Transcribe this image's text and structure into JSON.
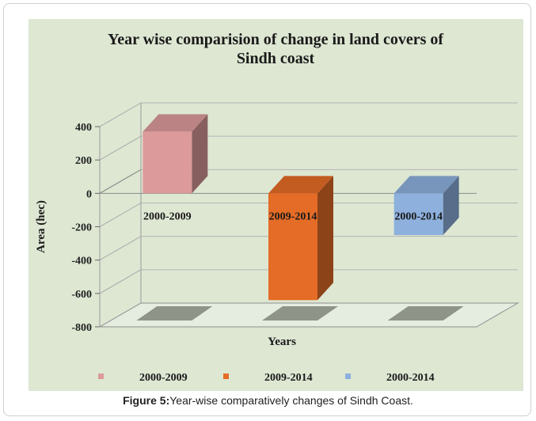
{
  "chart_data": {
    "type": "bar",
    "title": "Year wise comparision of change in land covers of Sindh coast",
    "title_lines": [
      "Year wise comparision of change in land covers of",
      "Sindh coast"
    ],
    "xlabel": "Years",
    "ylabel": "Area (hec)",
    "ylim": [
      -800,
      400
    ],
    "yticks": [
      400,
      200,
      0,
      -200,
      -400,
      -600,
      -800
    ],
    "categories": [
      "2000-2009",
      "2009-2014",
      "2000-2014"
    ],
    "series": [
      {
        "name": "2000-2009",
        "value": 370,
        "color": "#dc9a9a"
      },
      {
        "name": "2009-2014",
        "value": -640,
        "color": "#e46c26"
      },
      {
        "name": "2000-2014",
        "value": -250,
        "color": "#8db0dd"
      }
    ],
    "legend_position": "bottom",
    "grid": true
  },
  "caption": {
    "label": "Figure 5:",
    "text": "Year-wise comparatively changes of Sindh Coast."
  }
}
